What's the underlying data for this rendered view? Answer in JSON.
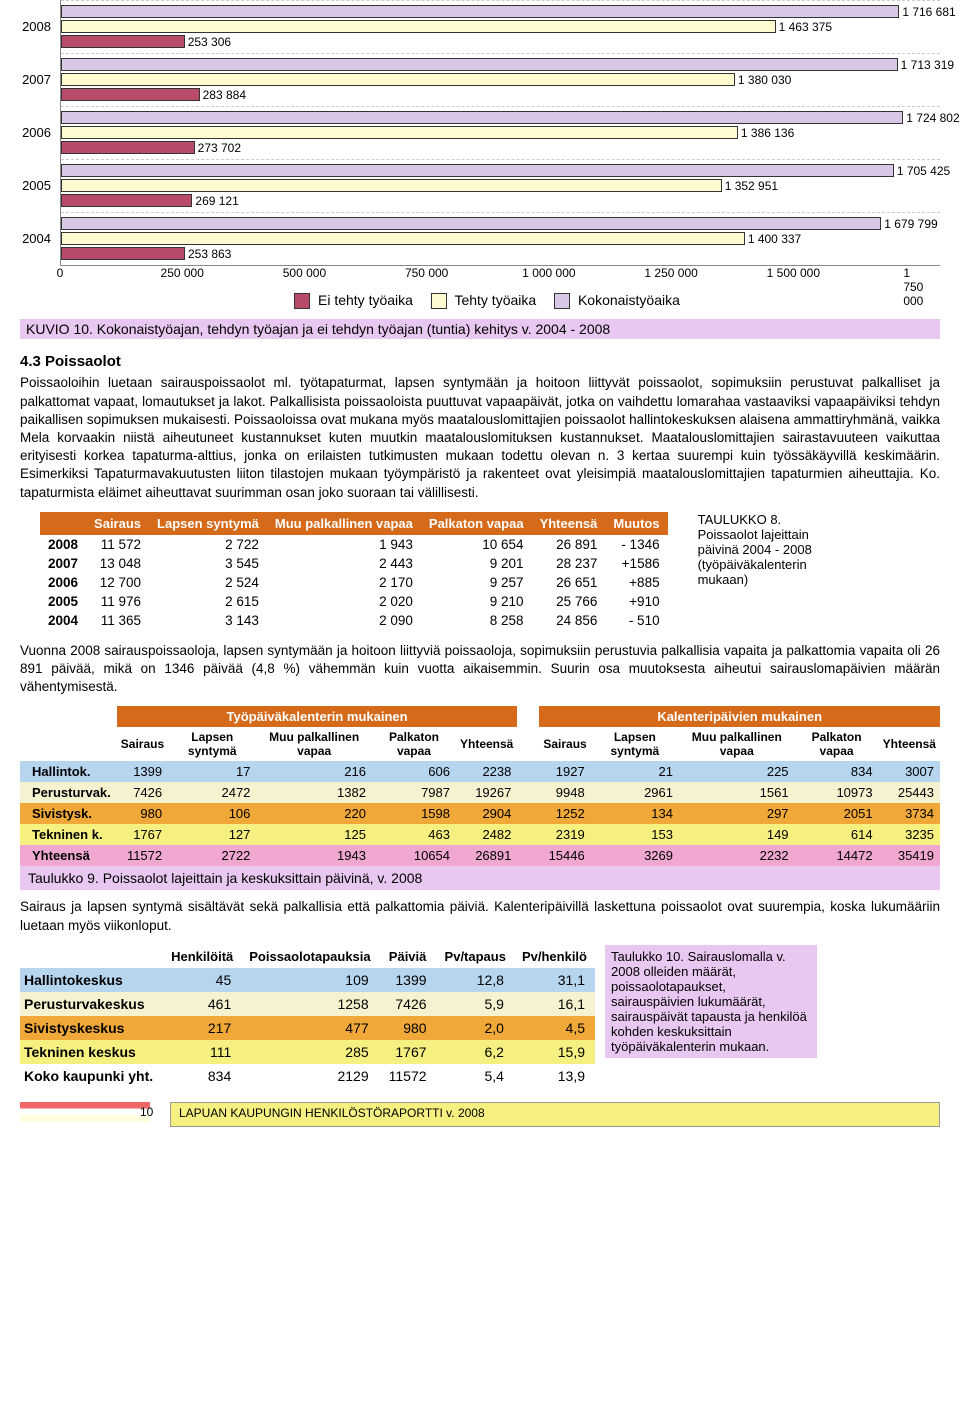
{
  "chart": {
    "xmax": 1800000,
    "ticks": [
      0,
      250000,
      500000,
      750000,
      1000000,
      1250000,
      1500000,
      1750000
    ],
    "tick_labels": [
      "0",
      "250 000",
      "500 000",
      "750 000",
      "1 000 000",
      "1 250 000",
      "1 500 000",
      "1 750 000"
    ],
    "colors": {
      "total": "#d8c8e6",
      "worked": "#fffbd0",
      "notworked": "#b84a6a"
    },
    "years": [
      {
        "year": "2008",
        "notworked": 253306,
        "worked": 1463375,
        "total": 1716681
      },
      {
        "year": "2007",
        "notworked": 283884,
        "worked": 1380030,
        "total": 1713319
      },
      {
        "year": "2006",
        "notworked": 273702,
        "worked": 1386136,
        "total": 1724802
      },
      {
        "year": "2005",
        "notworked": 269121,
        "worked": 1352951,
        "total": 1705425
      },
      {
        "year": "2004",
        "notworked": 253863,
        "worked": 1400337,
        "total": 1679799
      }
    ],
    "legend": {
      "notworked": "Ei tehty työaika",
      "worked": "Tehty työaika",
      "total": "Kokonaistyöaika"
    }
  },
  "kuvio10": "KUVIO 10. Kokonaistyöajan, tehdyn työajan ja ei tehdyn työajan (tuntia) kehitys v. 2004 - 2008",
  "section43_title": "4.3 Poissaolot",
  "section43_body": "Poissaoloihin luetaan sairauspoissaolot ml. työtapaturmat, lapsen syntymään ja hoitoon liittyvät poissaolot, sopimuksiin perustuvat palkalliset ja palkattomat vapaat, lomautukset ja lakot. Palkallisista poissaoloista puuttuvat vapaapäivät, jotka on vaihdettu lomarahaa vastaaviksi vapaapäiviksi tehdyn paikallisen sopimuksen mukaisesti. Poissaoloissa ovat mukana myös maatalouslomittajien poissaolot hallintokeskuksen alaisena ammattiryhmänä, vaikka Mela korvaakin niistä aiheutuneet kustannukset kuten muutkin maatalouslomituksen kustannukset. Maatalouslomittajien sairastavuuteen vaikuttaa erityisesti korkea tapaturma-alttius, jonka on erilaisten tutkimusten mukaan todettu olevan n. 3 kertaa suurempi kuin työssäkäyvillä keskimäärin. Esimerkiksi Tapaturmavakuutusten liiton tilastojen mukaan työympäristö ja rakenteet ovat yleisimpiä maatalouslomittajien tapaturmien aiheuttajia. Ko. tapaturmista eläimet aiheuttavat suurimman osan joko suoraan tai välillisesti.",
  "table8": {
    "headers": [
      "Sairaus",
      "Lapsen syntymä",
      "Muu palkallinen vapaa",
      "Palkaton vapaa",
      "Yhteensä",
      "Muutos"
    ],
    "rows": [
      {
        "y": "2008",
        "c": [
          "11 572",
          "2 722",
          "1 943",
          "10 654",
          "26 891",
          "- 1346"
        ]
      },
      {
        "y": "2007",
        "c": [
          "13 048",
          "3 545",
          "2 443",
          "9 201",
          "28 237",
          "+1586"
        ]
      },
      {
        "y": "2006",
        "c": [
          "12 700",
          "2 524",
          "2 170",
          "9 257",
          "26 651",
          "+885"
        ]
      },
      {
        "y": "2005",
        "c": [
          "11 976",
          "2 615",
          "2 020",
          "9 210",
          "25 766",
          "+910"
        ]
      },
      {
        "y": "2004",
        "c": [
          "11 365",
          "3 143",
          "2 090",
          "8 258",
          "24 856",
          "-  510"
        ]
      }
    ],
    "side": "TAULUKKO 8. Poissaolot lajeittain päivinä 2004 - 2008 (työpäiväkalenterin mukaan)"
  },
  "para_after_t8": "Vuonna 2008 sairauspoissaoloja, lapsen syntymään ja hoitoon liittyviä poissaoloja, sopimuksiin perustuvia palkallisia vapaita ja palkattomia vapaita oli 26 891 päivää, mikä on 1346 päivää (4,8 %) vähemmän kuin vuotta aikaisemmin. Suurin osa muutoksesta aiheutui sairauslomapäivien määrän vähentymisestä.",
  "table9": {
    "group_headers": [
      "Työpäiväkalenterin mukainen",
      "Kalenteripäivien mukainen"
    ],
    "sub_headers": [
      "Sairaus",
      "Lapsen syntymä",
      "Muu palkallinen vapaa",
      "Palkaton vapaa",
      "Yhteensä"
    ],
    "rows": [
      {
        "lbl": "Hallintok.",
        "cls": "row-hallinto",
        "a": [
          "1399",
          "17",
          "216",
          "606",
          "2238"
        ],
        "b": [
          "1927",
          "21",
          "225",
          "834",
          "3007"
        ]
      },
      {
        "lbl": "Perusturvak.",
        "cls": "row-perus",
        "a": [
          "7426",
          "2472",
          "1382",
          "7987",
          "19267"
        ],
        "b": [
          "9948",
          "2961",
          "1561",
          "10973",
          "25443"
        ]
      },
      {
        "lbl": "Sivistysk.",
        "cls": "row-sivistys",
        "a": [
          "980",
          "106",
          "220",
          "1598",
          "2904"
        ],
        "b": [
          "1252",
          "134",
          "297",
          "2051",
          "3734"
        ]
      },
      {
        "lbl": "Tekninen k.",
        "cls": "row-tekninen",
        "a": [
          "1767",
          "127",
          "125",
          "463",
          "2482"
        ],
        "b": [
          "2319",
          "153",
          "149",
          "614",
          "3235"
        ]
      },
      {
        "lbl": "Yhteensä",
        "cls": "row-yht",
        "a": [
          "11572",
          "2722",
          "1943",
          "10654",
          "26891"
        ],
        "b": [
          "15446",
          "3269",
          "2232",
          "14472",
          "35419"
        ]
      }
    ],
    "caption": "Taulukko 9. Poissaolot lajeittain ja keskuksittain päivinä, v. 2008"
  },
  "para_after_t9": "Sairaus ja lapsen syntymä sisältävät sekä palkallisia että palkattomia päiviä. Kalenteripäivillä laskettuna poissaolot ovat suurempia, koska lukumääriin luetaan myös viikonloput.",
  "table10": {
    "headers": [
      "Henkilöitä",
      "Poissaolotapauksia",
      "Päiviä",
      "Pv/tapaus",
      "Pv/henkilö"
    ],
    "rows": [
      {
        "lbl": "Hallintokeskus",
        "cls": "row-hallinto",
        "c": [
          "45",
          "109",
          "1399",
          "12,8",
          "31,1"
        ]
      },
      {
        "lbl": "Perusturvakeskus",
        "cls": "row-perus",
        "c": [
          "461",
          "1258",
          "7426",
          "5,9",
          "16,1"
        ]
      },
      {
        "lbl": "Sivistyskeskus",
        "cls": "row-sivistys",
        "c": [
          "217",
          "477",
          "980",
          "2,0",
          "4,5"
        ]
      },
      {
        "lbl": "Tekninen keskus",
        "cls": "row-tekninen",
        "c": [
          "111",
          "285",
          "1767",
          "6,2",
          "15,9"
        ]
      },
      {
        "lbl": "Koko kaupunki yht.",
        "cls": "",
        "c": [
          "834",
          "2129",
          "11572",
          "5,4",
          "13,9"
        ]
      }
    ],
    "side": "Taulukko 10. Sairauslomalla v. 2008 olleiden määrät, poissaolotapaukset, sairauspäivien lukumäärät, sairauspäivät tapausta ja henkilöä kohden keskuksittain työpäiväkalenterin mukaan."
  },
  "footer": {
    "page": "10",
    "title": "LAPUAN KAUPUNGIN HENKILÖSTÖRAPORTTI v. 2008"
  }
}
